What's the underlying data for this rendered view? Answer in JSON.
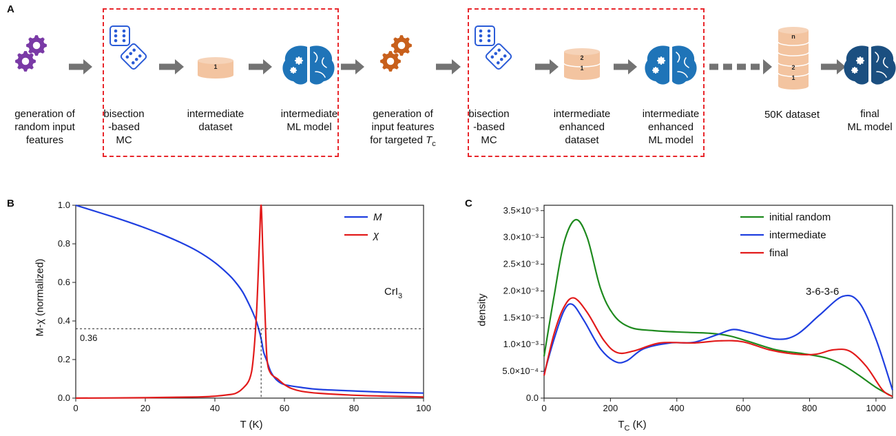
{
  "panel_labels": {
    "a": "A",
    "b": "B",
    "c": "C"
  },
  "workflow": {
    "steps": [
      {
        "id": "gen_random",
        "lines": [
          "generation of",
          "random input",
          "features"
        ]
      },
      {
        "id": "bisection1",
        "lines": [
          "bisection",
          "-based",
          "MC"
        ]
      },
      {
        "id": "inter_dataset",
        "lines": [
          "intermediate",
          "dataset"
        ]
      },
      {
        "id": "inter_model",
        "lines": [
          "intermediate",
          "ML model"
        ]
      },
      {
        "id": "gen_targeted",
        "lines": [
          "generation of",
          "input features",
          "for targeted T"
        ],
        "subscript": "c"
      },
      {
        "id": "bisection2",
        "lines": [
          "bisection",
          "-based",
          "MC"
        ]
      },
      {
        "id": "inter_enh_dataset",
        "lines": [
          "intermediate",
          "enhanced",
          "dataset"
        ]
      },
      {
        "id": "inter_enh_model",
        "lines": [
          "intermediate",
          "enhanced",
          "ML model"
        ]
      },
      {
        "id": "dataset_50k",
        "lines": [
          "50K dataset"
        ]
      },
      {
        "id": "final_model",
        "lines": [
          "final",
          "ML model"
        ]
      }
    ],
    "dataset_labels": {
      "single": "1",
      "two_top": "2",
      "two_bottom": "1",
      "n_top": "n",
      "n_mid": "2",
      "n_bottom": "1"
    },
    "colors": {
      "gear_purple": "#7a3aa6",
      "gear_orange": "#c8601c",
      "dice_blue": "#2a5bd7",
      "dataset_peach": "#f3c4a0",
      "brain_blue": "#1f74b8",
      "brain_dark": "#1b4f80",
      "arrow_gray": "#737373",
      "dash_red": "#e8262b"
    }
  },
  "chart_data": [
    {
      "panel": "B",
      "type": "line",
      "xlabel": "T (K)",
      "ylabel": "M-χ (normalized)",
      "xlim": [
        0,
        100
      ],
      "ylim": [
        0,
        1.0
      ],
      "xticks": [
        "0",
        "20",
        "40",
        "60",
        "80",
        "100"
      ],
      "yticks": [
        "0.0",
        "0.2",
        "0.4",
        "0.6",
        "0.8",
        "1.0"
      ],
      "annotation_text": "CrI",
      "annotation_sub": "3",
      "hline": {
        "y": 0.36,
        "label": "0.36"
      },
      "vline": {
        "x": 53.3
      },
      "legend_position": "top-right",
      "series": [
        {
          "name": "M",
          "color": "#1f3fe0",
          "points": [
            [
              0,
              1.0
            ],
            [
              5,
              0.972
            ],
            [
              10,
              0.944
            ],
            [
              15,
              0.914
            ],
            [
              20,
              0.882
            ],
            [
              25,
              0.847
            ],
            [
              30,
              0.808
            ],
            [
              35,
              0.762
            ],
            [
              40,
              0.703
            ],
            [
              44,
              0.64
            ],
            [
              46,
              0.6
            ],
            [
              48,
              0.55
            ],
            [
              50,
              0.48
            ],
            [
              51,
              0.44
            ],
            [
              52,
              0.395
            ],
            [
              53,
              0.33
            ],
            [
              53.5,
              0.29
            ],
            [
              54,
              0.24
            ],
            [
              55,
              0.19
            ],
            [
              56,
              0.14
            ],
            [
              57,
              0.11
            ],
            [
              58,
              0.09
            ],
            [
              60,
              0.07
            ],
            [
              65,
              0.055
            ],
            [
              70,
              0.045
            ],
            [
              80,
              0.037
            ],
            [
              90,
              0.03
            ],
            [
              100,
              0.026
            ]
          ]
        },
        {
          "name": "χ",
          "color": "#e21b1b",
          "points": [
            [
              0,
              0.0
            ],
            [
              20,
              0.002
            ],
            [
              35,
              0.006
            ],
            [
              40,
              0.01
            ],
            [
              44,
              0.018
            ],
            [
              46,
              0.025
            ],
            [
              48,
              0.05
            ],
            [
              50,
              0.1
            ],
            [
              51,
              0.2
            ],
            [
              52,
              0.45
            ],
            [
              52.8,
              0.8
            ],
            [
              53.3,
              1.0
            ],
            [
              53.8,
              0.75
            ],
            [
              54.5,
              0.4
            ],
            [
              55,
              0.2
            ],
            [
              56,
              0.13
            ],
            [
              58,
              0.1
            ],
            [
              60,
              0.07
            ],
            [
              62,
              0.05
            ],
            [
              65,
              0.035
            ],
            [
              70,
              0.025
            ],
            [
              80,
              0.015
            ],
            [
              90,
              0.01
            ],
            [
              100,
              0.006
            ]
          ]
        }
      ]
    },
    {
      "panel": "C",
      "type": "line",
      "xlabel": "T",
      "xlabel_sub": "C",
      "xlabel_unit": " (K)",
      "ylabel": "density",
      "xlim": [
        0,
        1050
      ],
      "ylim": [
        0,
        0.0036
      ],
      "xticks": [
        "0",
        "200",
        "400",
        "600",
        "800",
        "1000"
      ],
      "yticks": [
        "0.0",
        "5.0×10⁻⁴",
        "1.0×10⁻³",
        "1.5×10⁻³",
        "2.0×10⁻³",
        "2.5×10⁻³",
        "3.0×10⁻³",
        "3.5×10⁻³"
      ],
      "annotation_text": "3-6-3-6",
      "legend_position": "top-right",
      "series": [
        {
          "name": "initial random",
          "color": "#1e8a1e",
          "points": [
            [
              0,
              0.00078
            ],
            [
              30,
              0.0019
            ],
            [
              60,
              0.0029
            ],
            [
              95,
              0.00333
            ],
            [
              130,
              0.003
            ],
            [
              170,
              0.00205
            ],
            [
              210,
              0.00155
            ],
            [
              260,
              0.00132
            ],
            [
              330,
              0.00126
            ],
            [
              420,
              0.00123
            ],
            [
              500,
              0.00121
            ],
            [
              560,
              0.00116
            ],
            [
              620,
              0.00105
            ],
            [
              700,
              0.0009
            ],
            [
              780,
              0.00083
            ],
            [
              850,
              0.00075
            ],
            [
              900,
              0.00062
            ],
            [
              950,
              0.00042
            ],
            [
              1000,
              0.0002
            ],
            [
              1050,
              3e-05
            ]
          ]
        },
        {
          "name": "intermediate",
          "color": "#1f3fe0",
          "points": [
            [
              0,
              0.00045
            ],
            [
              30,
              0.0011
            ],
            [
              60,
              0.00163
            ],
            [
              85,
              0.00175
            ],
            [
              120,
              0.00145
            ],
            [
              170,
              0.00092
            ],
            [
              215,
              0.00068
            ],
            [
              250,
              0.0007
            ],
            [
              300,
              0.00092
            ],
            [
              380,
              0.00103
            ],
            [
              450,
              0.00104
            ],
            [
              520,
              0.00118
            ],
            [
              570,
              0.00128
            ],
            [
              620,
              0.00122
            ],
            [
              700,
              0.0011
            ],
            [
              760,
              0.00118
            ],
            [
              830,
              0.00155
            ],
            [
              900,
              0.0019
            ],
            [
              950,
              0.00178
            ],
            [
              1000,
              0.0011
            ],
            [
              1050,
              0.00015
            ]
          ]
        },
        {
          "name": "final",
          "color": "#e21b1b",
          "points": [
            [
              0,
              0.00042
            ],
            [
              30,
              0.0012
            ],
            [
              60,
              0.0017
            ],
            [
              90,
              0.00187
            ],
            [
              130,
              0.0016
            ],
            [
              180,
              0.00108
            ],
            [
              220,
              0.00085
            ],
            [
              270,
              0.00088
            ],
            [
              350,
              0.00103
            ],
            [
              450,
              0.00103
            ],
            [
              530,
              0.00107
            ],
            [
              600,
              0.00105
            ],
            [
              680,
              0.0009
            ],
            [
              760,
              0.00082
            ],
            [
              820,
              0.00082
            ],
            [
              870,
              0.0009
            ],
            [
              920,
              0.00088
            ],
            [
              970,
              0.0006
            ],
            [
              1020,
              0.00015
            ],
            [
              1050,
              3e-05
            ]
          ]
        }
      ]
    }
  ]
}
